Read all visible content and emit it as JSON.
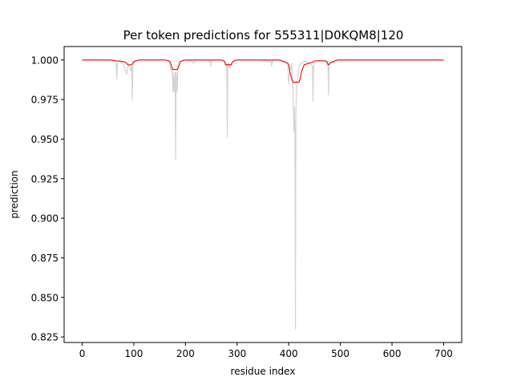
{
  "chart_data": {
    "type": "line",
    "title": "Per token predictions for 555311|D0KQM8|120",
    "xlabel": "residue index",
    "ylabel": "prediction",
    "xlim": [
      -35,
      735
    ],
    "ylim": [
      0.8215,
      1.0085
    ],
    "xticks": [
      0,
      100,
      200,
      300,
      400,
      500,
      600,
      700
    ],
    "xtick_labels": [
      "0",
      "100",
      "200",
      "300",
      "400",
      "500",
      "600",
      "700"
    ],
    "yticks": [
      0.825,
      0.85,
      0.875,
      0.9,
      0.925,
      0.95,
      0.975,
      1.0
    ],
    "ytick_labels": [
      "0.825",
      "0.850",
      "0.875",
      "0.900",
      "0.925",
      "0.950",
      "0.975",
      "1.000"
    ],
    "grid": false,
    "legend": "none",
    "series": [
      {
        "color": "#d3d3d3",
        "x": [
          0,
          60,
          64,
          66,
          67,
          68,
          70,
          72,
          76,
          78,
          80,
          84,
          86,
          88,
          90,
          92,
          94,
          96,
          97,
          98,
          100,
          104,
          110,
          160,
          168,
          170,
          172,
          174,
          176,
          177,
          178,
          180,
          181,
          182,
          184,
          185,
          186,
          188,
          192,
          196,
          200,
          206,
          210,
          215,
          216,
          220,
          240,
          248,
          249,
          250,
          256,
          270,
          274,
          276,
          278,
          280,
          281,
          282,
          283,
          284,
          286,
          288,
          290,
          292,
          296,
          300,
          340,
          366,
          367,
          368,
          370,
          386,
          394,
          396,
          398,
          400,
          402,
          404,
          406,
          408,
          410,
          411,
          412,
          413,
          414,
          415,
          416,
          418,
          420,
          424,
          426,
          430,
          436,
          440,
          444,
          446,
          447,
          448,
          450,
          456,
          470,
          476,
          477,
          478,
          480,
          484,
          486,
          490,
          496,
          500,
          600,
          700
        ],
        "y": [
          1.0,
          1.0,
          0.999,
          0.998,
          0.988,
          0.998,
          0.999,
          0.999,
          0.998,
          0.999,
          0.997,
          0.993,
          0.991,
          0.995,
          0.998,
          0.996,
          0.993,
          0.996,
          0.975,
          0.996,
          0.998,
          0.999,
          1.0,
          1.0,
          0.999,
          0.996,
          0.993,
          0.995,
          0.98,
          0.992,
          0.98,
          0.992,
          0.937,
          0.992,
          0.98,
          0.994,
          0.997,
          0.998,
          0.999,
          1.0,
          1.0,
          0.999,
          1.0,
          0.998,
          0.998,
          1.0,
          1.0,
          0.999,
          0.996,
          1.0,
          1.0,
          1.0,
          0.999,
          0.998,
          0.996,
          0.998,
          0.951,
          0.998,
          0.996,
          0.998,
          0.995,
          0.997,
          0.999,
          0.999,
          1.0,
          1.0,
          1.0,
          0.999,
          0.996,
          0.999,
          1.0,
          1.0,
          0.999,
          0.998,
          0.997,
          0.985,
          0.995,
          0.994,
          0.998,
          0.985,
          0.955,
          0.97,
          0.955,
          0.83,
          0.97,
          0.98,
          0.985,
          0.99,
          0.996,
          0.998,
          0.998,
          0.999,
          0.999,
          0.998,
          0.997,
          0.996,
          0.974,
          0.996,
          0.998,
          0.999,
          0.999,
          0.998,
          0.978,
          0.997,
          0.999,
          0.999,
          0.998,
          0.999,
          1.0,
          1.0,
          1.0,
          1.0
        ]
      },
      {
        "color": "#ff0000",
        "x": [
          0,
          55,
          65,
          75,
          80,
          84,
          86,
          88,
          92,
          96,
          98,
          100,
          104,
          110,
          160,
          168,
          170,
          172,
          174,
          176,
          184,
          186,
          188,
          190,
          194,
          200,
          210,
          270,
          274,
          276,
          277,
          278,
          289,
          290,
          292,
          294,
          300,
          305,
          340,
          380,
          385,
          390,
          394,
          398,
          400,
          402,
          405,
          408,
          420,
          422,
          425,
          430,
          440,
          445,
          449,
          450,
          470,
          474,
          475,
          476,
          478,
          480,
          486,
          490,
          495,
          500,
          600,
          700
        ],
        "y": [
          1.0,
          1.0,
          0.9995,
          0.9992,
          0.999,
          0.9985,
          0.998,
          0.997,
          0.9968,
          0.997,
          0.998,
          0.999,
          0.9995,
          1.0,
          1.0,
          0.9995,
          0.999,
          0.997,
          0.995,
          0.994,
          0.994,
          0.995,
          0.997,
          0.999,
          0.9995,
          1.0,
          1.0,
          1.0,
          0.9995,
          0.999,
          0.998,
          0.997,
          0.997,
          0.998,
          0.999,
          0.9995,
          1.0,
          1.0,
          1.0,
          1.0,
          0.9995,
          0.999,
          0.9985,
          0.998,
          0.997,
          0.993,
          0.989,
          0.986,
          0.986,
          0.988,
          0.993,
          0.997,
          0.998,
          0.9985,
          0.999,
          0.9995,
          0.9995,
          0.999,
          0.998,
          0.997,
          0.997,
          0.998,
          0.999,
          0.9995,
          1.0,
          1.0,
          1.0,
          1.0
        ]
      }
    ]
  }
}
